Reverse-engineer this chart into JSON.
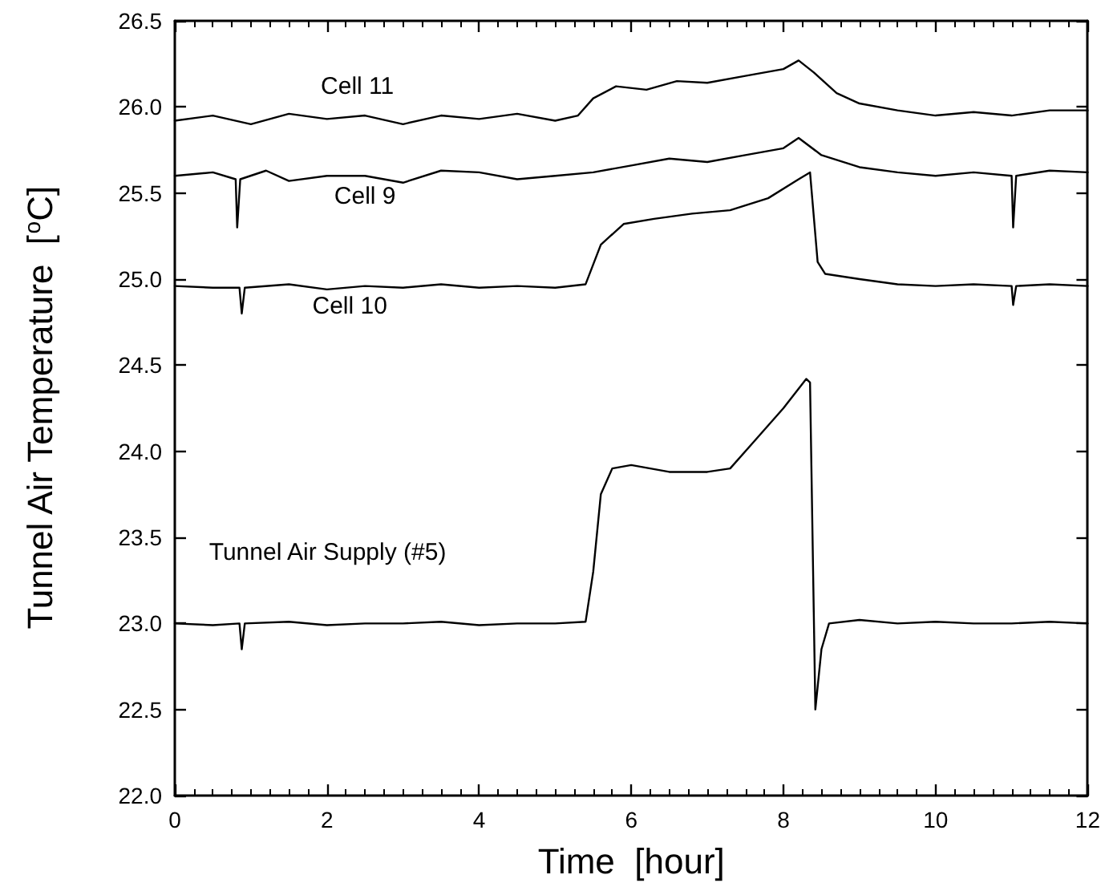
{
  "chart_data": {
    "type": "line",
    "xlabel": "Time  [hour]",
    "ylabel": "Tunnel Air Temperature  [$^{o}$C]",
    "xlim": [
      0,
      12
    ],
    "xticks": [
      0,
      2,
      4,
      6,
      8,
      10,
      12
    ],
    "ylim": [
      22,
      26.5
    ],
    "yticks": [
      {
        "value": 22,
        "label": "22.0"
      },
      {
        "value": 22.5,
        "label": "22.5"
      },
      {
        "value": 23,
        "label": "23.0"
      },
      {
        "value": 23.5,
        "label": "23.5"
      },
      {
        "value": 24,
        "label": "24.0"
      },
      {
        "value": 24.5,
        "label": "24.5"
      },
      {
        "value": 25,
        "label": "25.0"
      },
      {
        "value": 25.5,
        "label": "25.5"
      },
      {
        "value": 26,
        "label": "26.0"
      },
      {
        "value": 26.5,
        "label": "26.5"
      }
    ],
    "grid": false,
    "legend": false,
    "marker": "none",
    "line_style": "solid",
    "series": [
      {
        "name": "Cell 11",
        "color": "#000000",
        "x": [
          0,
          0.5,
          1,
          1.5,
          2,
          2.5,
          3,
          3.5,
          4,
          4.5,
          5,
          5.3,
          5.5,
          5.8,
          6.2,
          6.6,
          7,
          7.5,
          8,
          8.2,
          8.4,
          8.7,
          9,
          9.5,
          10,
          10.5,
          11,
          11.5,
          12
        ],
        "values": [
          25.92,
          25.95,
          25.9,
          25.96,
          25.93,
          25.95,
          25.9,
          25.95,
          25.93,
          25.96,
          25.92,
          25.95,
          26.05,
          26.12,
          26.1,
          26.15,
          26.14,
          26.18,
          26.22,
          26.27,
          26.2,
          26.08,
          26.02,
          25.98,
          25.95,
          25.97,
          25.95,
          25.98,
          25.98
        ]
      },
      {
        "name": "Cell 9",
        "color": "#000000",
        "x": [
          0,
          0.5,
          0.8,
          0.82,
          0.86,
          1.2,
          1.5,
          2,
          2.5,
          3,
          3.5,
          4,
          4.5,
          5,
          5.5,
          6,
          6.5,
          7,
          7.5,
          8,
          8.2,
          8.5,
          9,
          9.5,
          10,
          10.5,
          11,
          11.02,
          11.06,
          11.5,
          12
        ],
        "values": [
          25.6,
          25.62,
          25.58,
          25.3,
          25.58,
          25.63,
          25.57,
          25.6,
          25.6,
          25.56,
          25.63,
          25.62,
          25.58,
          25.6,
          25.62,
          25.66,
          25.7,
          25.68,
          25.72,
          25.76,
          25.82,
          25.72,
          25.65,
          25.62,
          25.6,
          25.62,
          25.6,
          25.3,
          25.6,
          25.63,
          25.62
        ]
      },
      {
        "name": "Cell 10",
        "color": "#000000",
        "x": [
          0,
          0.5,
          0.85,
          0.88,
          0.92,
          1.5,
          2,
          2.5,
          3,
          3.5,
          4,
          4.5,
          5,
          5.4,
          5.6,
          5.9,
          6.3,
          6.8,
          7.3,
          7.8,
          8.2,
          8.35,
          8.45,
          8.55,
          9,
          9.5,
          10,
          10.5,
          11,
          11.02,
          11.06,
          11.5,
          12
        ],
        "values": [
          24.96,
          24.95,
          24.95,
          24.8,
          24.95,
          24.97,
          24.94,
          24.96,
          24.95,
          24.97,
          24.95,
          24.96,
          24.95,
          24.97,
          25.2,
          25.32,
          25.35,
          25.38,
          25.4,
          25.47,
          25.58,
          25.62,
          25.1,
          25.03,
          25.0,
          24.97,
          24.96,
          24.97,
          24.96,
          24.85,
          24.96,
          24.97,
          24.96
        ]
      },
      {
        "name": "Tunnel Air Supply (#5)",
        "color": "#000000",
        "x": [
          0,
          0.5,
          0.85,
          0.88,
          0.92,
          1.5,
          2,
          2.5,
          3,
          3.5,
          4,
          4.5,
          5,
          5.4,
          5.5,
          5.6,
          5.75,
          6,
          6.5,
          7,
          7.3,
          7.6,
          8,
          8.3,
          8.35,
          8.42,
          8.5,
          8.6,
          9,
          9.5,
          10,
          10.5,
          11,
          11.5,
          12
        ],
        "values": [
          23.0,
          22.99,
          23.0,
          22.85,
          23.0,
          23.01,
          22.99,
          23.0,
          23.0,
          23.01,
          22.99,
          23.0,
          23.0,
          23.01,
          23.3,
          23.75,
          23.9,
          23.92,
          23.88,
          23.88,
          23.9,
          24.05,
          24.25,
          24.42,
          24.4,
          22.5,
          22.85,
          23.0,
          23.02,
          23.0,
          23.01,
          23.0,
          23.0,
          23.01,
          23.0
        ]
      }
    ]
  }
}
